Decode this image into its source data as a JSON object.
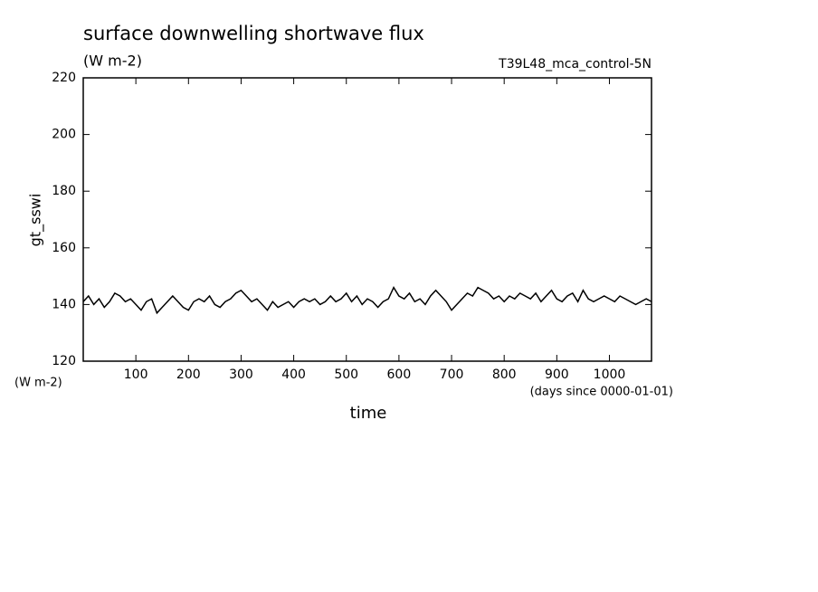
{
  "chart_data": {
    "type": "line",
    "title": "surface downwelling shortwave flux",
    "subtitle": "(W m-2)",
    "annotation": "T39L48_mca_control-5N",
    "y_label": "gt_sswi",
    "y_unit": "(W m-2)",
    "x_unit": "(days since 0000-01-01)",
    "x_label": "time",
    "xlim": [
      0,
      1080
    ],
    "ylim": [
      120,
      220
    ],
    "xticks": [
      100,
      200,
      300,
      400,
      500,
      600,
      700,
      800,
      900,
      1000
    ],
    "yticks": [
      120,
      140,
      160,
      180,
      200,
      220
    ],
    "x": [
      0,
      10,
      20,
      30,
      40,
      50,
      60,
      70,
      80,
      90,
      100,
      110,
      120,
      130,
      140,
      150,
      160,
      170,
      180,
      190,
      200,
      210,
      220,
      230,
      240,
      250,
      260,
      270,
      280,
      290,
      300,
      310,
      320,
      330,
      340,
      350,
      360,
      370,
      380,
      390,
      400,
      410,
      420,
      430,
      440,
      450,
      460,
      470,
      480,
      490,
      500,
      510,
      520,
      530,
      540,
      550,
      560,
      570,
      580,
      590,
      600,
      610,
      620,
      630,
      640,
      650,
      660,
      670,
      680,
      690,
      700,
      710,
      720,
      730,
      740,
      750,
      760,
      770,
      780,
      790,
      800,
      810,
      820,
      830,
      840,
      850,
      860,
      870,
      880,
      890,
      900,
      910,
      920,
      930,
      940,
      950,
      960,
      970,
      980,
      990,
      1000,
      1010,
      1020,
      1030,
      1040,
      1050,
      1060,
      1070,
      1080
    ],
    "series": [
      {
        "name": "gt_sswi",
        "color": "#000000",
        "values": [
          141,
          143,
          140,
          142,
          139,
          141,
          144,
          143,
          141,
          142,
          140,
          138,
          141,
          142,
          137,
          139,
          141,
          143,
          141,
          139,
          138,
          141,
          142,
          141,
          143,
          140,
          139,
          141,
          142,
          144,
          145,
          143,
          141,
          142,
          140,
          138,
          141,
          139,
          140,
          141,
          139,
          141,
          142,
          141,
          142,
          140,
          141,
          143,
          141,
          142,
          144,
          141,
          143,
          140,
          142,
          141,
          139,
          141,
          142,
          146,
          143,
          142,
          144,
          141,
          142,
          140,
          143,
          145,
          143,
          141,
          138,
          140,
          142,
          144,
          143,
          146,
          145,
          144,
          142,
          143,
          141,
          143,
          142,
          144,
          143,
          142,
          144,
          141,
          143,
          145,
          142,
          141,
          143,
          144,
          141,
          145,
          142,
          141,
          142,
          143,
          142,
          141,
          143,
          142,
          141,
          140,
          141,
          142,
          141
        ]
      }
    ]
  }
}
